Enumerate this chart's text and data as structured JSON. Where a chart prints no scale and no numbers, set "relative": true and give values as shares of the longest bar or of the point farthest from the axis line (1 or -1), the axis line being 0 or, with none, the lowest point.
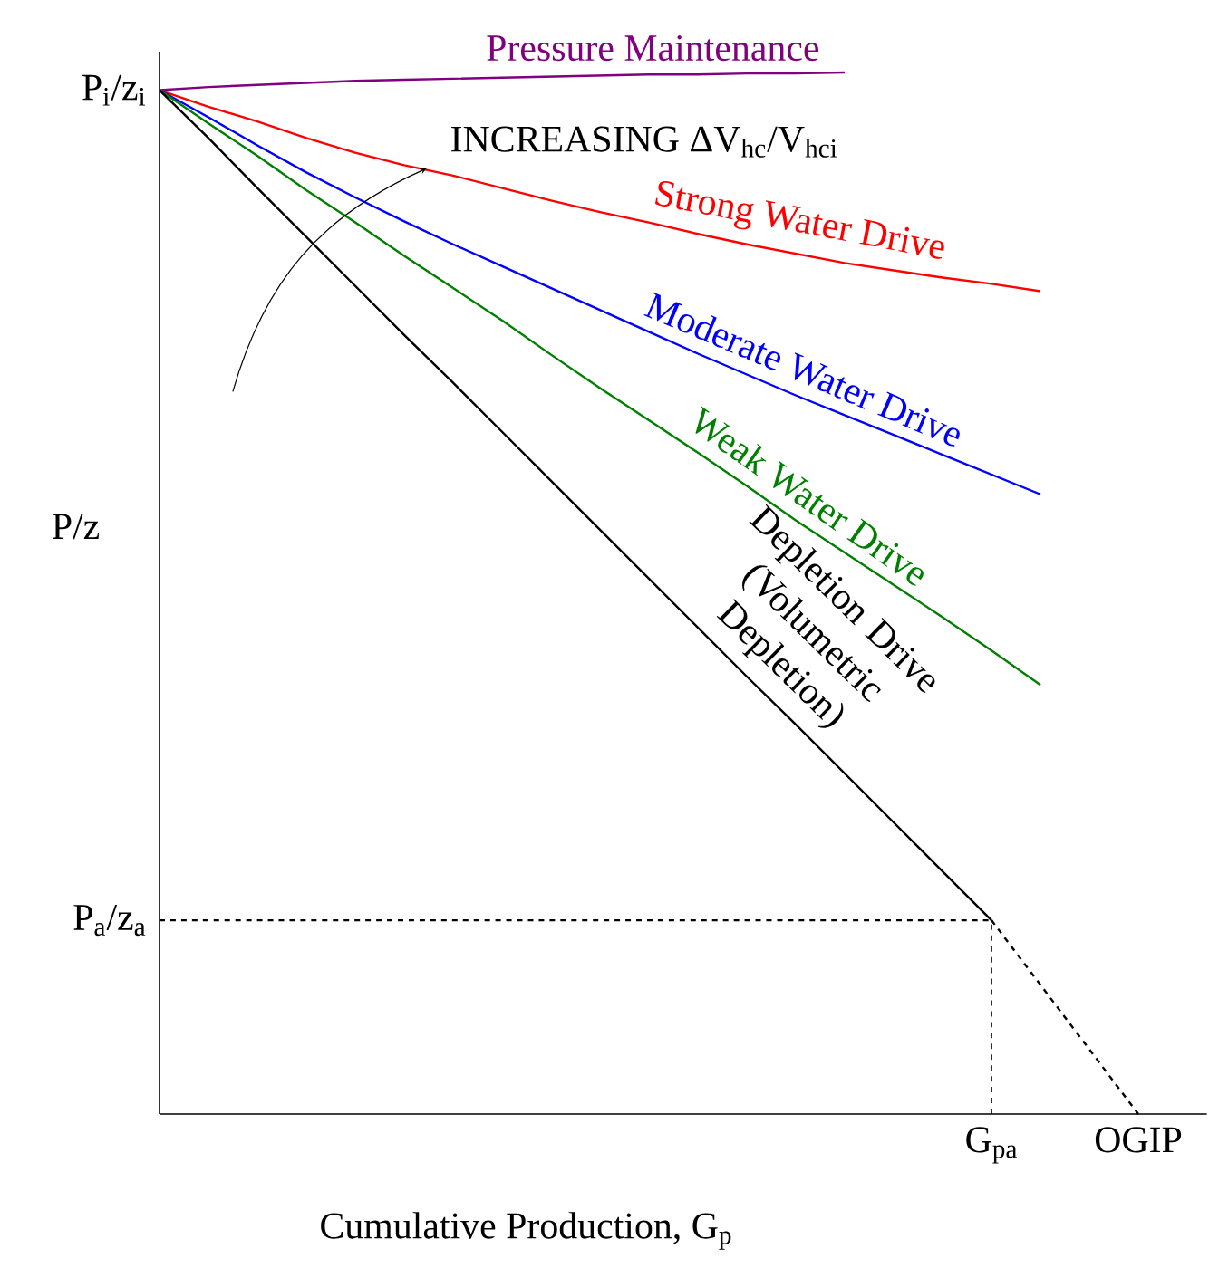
{
  "chart_data": {
    "type": "line",
    "relative": true,
    "xlabel": "Cumulative Production, G$_{p}$",
    "ylabel": "P/z",
    "legend": false,
    "line_style": "solid",
    "categories": [
      null,
      null,
      null,
      null,
      null,
      null,
      null,
      null,
      null,
      null,
      null,
      null,
      null,
      null,
      null,
      null,
      null,
      "G$_{pa}$",
      null,
      null,
      "OGIP"
    ],
    "annotations": [
      "INCREASING ΔV$_{hc}$/V$_{hci}$",
      "P$_{i}$/z$_{i}$",
      "P$_{a}$/z$_{a}$"
    ],
    "ref_lines": [
      {
        "axis": "x",
        "value": "G$_{pa}$",
        "color": "#000000",
        "line_style": "dashed"
      }
    ],
    "series": [
      {
        "name": "Pressure Maintenance",
        "color": "#800080",
        "values": [
          0.983,
          0.986,
          0.988,
          0.99,
          0.992,
          0.993,
          0.994,
          0.995,
          0.996,
          0.997,
          0.998,
          0.998,
          0.999,
          0.999,
          1,
          null,
          null,
          null,
          null,
          null,
          null
        ]
      },
      {
        "name": "Strong Water Drive",
        "color": "#ff0000",
        "values": [
          0.983,
          0.967,
          0.953,
          0.937,
          0.923,
          0.911,
          0.901,
          0.889,
          0.877,
          0.866,
          0.856,
          0.845,
          0.835,
          0.826,
          0.817,
          0.81,
          0.803,
          0.797,
          0.79,
          null,
          null
        ]
      },
      {
        "name": "Moderate Water Drive",
        "color": "#0000ff",
        "values": [
          0.983,
          0.957,
          0.93,
          0.904,
          0.88,
          0.857,
          0.835,
          0.814,
          0.793,
          0.772,
          0.751,
          0.73,
          0.71,
          0.69,
          0.671,
          0.652,
          0.633,
          0.614,
          0.595,
          null,
          null
        ]
      },
      {
        "name": "Weak Water Drive",
        "color": "#008000",
        "values": [
          0.983,
          0.951,
          0.92,
          0.887,
          0.856,
          0.824,
          0.793,
          0.762,
          0.729,
          0.697,
          0.666,
          0.635,
          0.603,
          0.57,
          0.539,
          0.508,
          0.477,
          0.445,
          0.412,
          null,
          null
        ]
      },
      {
        "name": "Depletion Drive (Volumetric Depletion)",
        "color": "#000000",
        "values": [
          0.983,
          0.937,
          0.889,
          0.842,
          0.795,
          0.748,
          0.702,
          0.655,
          0.608,
          0.561,
          0.514,
          0.467,
          0.42,
          0.374,
          0.327,
          0.28,
          0.233,
          0.186,
          null,
          null,
          null
        ]
      },
      {
        "color": "#000000",
        "line_style": "dashed",
        "values": [
          null,
          null,
          null,
          null,
          null,
          null,
          null,
          null,
          null,
          null,
          null,
          null,
          null,
          null,
          null,
          null,
          null,
          0.186,
          0.124,
          0.062,
          0
        ]
      },
      {
        "color": "#000000",
        "line_style": "dashed",
        "values": [
          0.186,
          0.186,
          0.186,
          0.186,
          0.186,
          0.186,
          0.186,
          0.186,
          0.186,
          0.186,
          0.186,
          0.186,
          0.186,
          0.186,
          0.186,
          0.186,
          0.186,
          0.186,
          null,
          null,
          null
        ]
      }
    ]
  }
}
